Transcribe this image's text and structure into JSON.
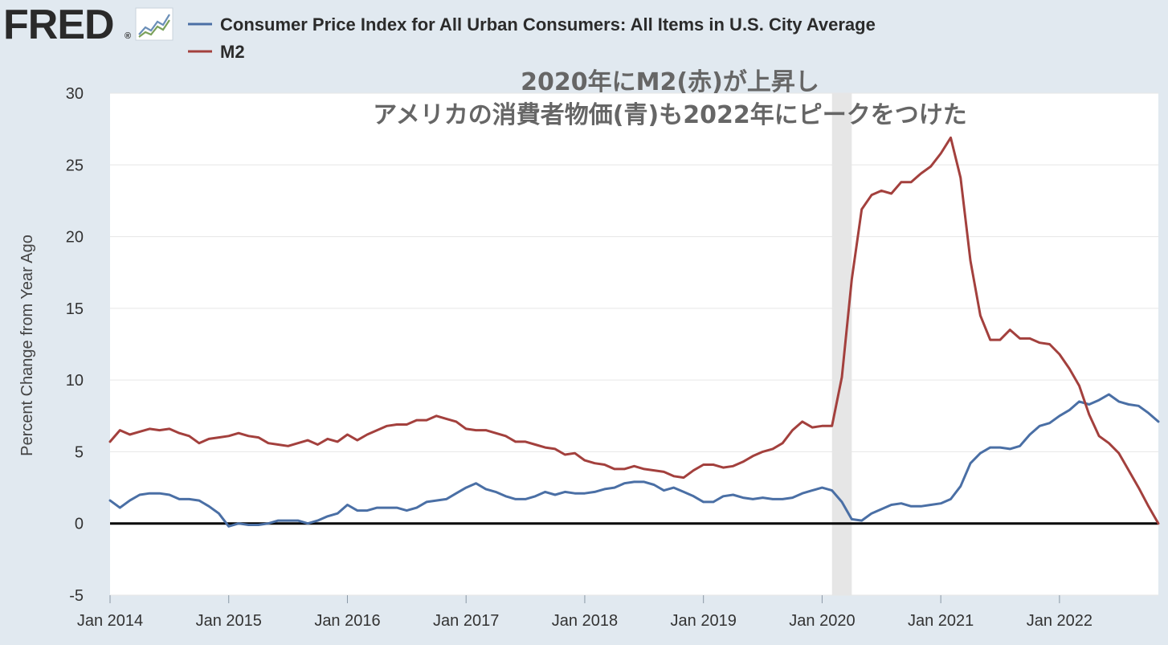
{
  "header": {
    "logo_text": "FRED",
    "logo_mark": "®",
    "logo_icon": "line-chart-icon"
  },
  "colors": {
    "cpi": "#4a6fa5",
    "m2": "#a3403d",
    "background": "#e1e9f0",
    "plot_bg": "#ffffff",
    "grid": "#e6e6e6",
    "recession": "#e6e6e6",
    "zero_line": "#000000"
  },
  "chart_data": {
    "type": "line",
    "title": "",
    "ylabel": "Percent Change from Year Ago",
    "xlabel": "",
    "ylim": [
      -5,
      30
    ],
    "yticks": [
      -5,
      0,
      5,
      10,
      15,
      20,
      25,
      30
    ],
    "xlim": [
      "2014-01",
      "2022-11"
    ],
    "xtick_labels": [
      "Jan 2014",
      "Jan 2015",
      "Jan 2016",
      "Jan 2017",
      "Jan 2018",
      "Jan 2019",
      "Jan 2020",
      "Jan 2021",
      "Jan 2022"
    ],
    "grid": true,
    "legend_position": "top-left",
    "recession": {
      "start": "2020-02",
      "end": "2020-04"
    },
    "annotation": [
      "2020年にM2(赤)が上昇し",
      "アメリカの消費者物価(青)も2022年にピークをつけた"
    ],
    "x": [
      "2014-01",
      "2014-02",
      "2014-03",
      "2014-04",
      "2014-05",
      "2014-06",
      "2014-07",
      "2014-08",
      "2014-09",
      "2014-10",
      "2014-11",
      "2014-12",
      "2015-01",
      "2015-02",
      "2015-03",
      "2015-04",
      "2015-05",
      "2015-06",
      "2015-07",
      "2015-08",
      "2015-09",
      "2015-10",
      "2015-11",
      "2015-12",
      "2016-01",
      "2016-02",
      "2016-03",
      "2016-04",
      "2016-05",
      "2016-06",
      "2016-07",
      "2016-08",
      "2016-09",
      "2016-10",
      "2016-11",
      "2016-12",
      "2017-01",
      "2017-02",
      "2017-03",
      "2017-04",
      "2017-05",
      "2017-06",
      "2017-07",
      "2017-08",
      "2017-09",
      "2017-10",
      "2017-11",
      "2017-12",
      "2018-01",
      "2018-02",
      "2018-03",
      "2018-04",
      "2018-05",
      "2018-06",
      "2018-07",
      "2018-08",
      "2018-09",
      "2018-10",
      "2018-11",
      "2018-12",
      "2019-01",
      "2019-02",
      "2019-03",
      "2019-04",
      "2019-05",
      "2019-06",
      "2019-07",
      "2019-08",
      "2019-09",
      "2019-10",
      "2019-11",
      "2019-12",
      "2020-01",
      "2020-02",
      "2020-03",
      "2020-04",
      "2020-05",
      "2020-06",
      "2020-07",
      "2020-08",
      "2020-09",
      "2020-10",
      "2020-11",
      "2020-12",
      "2021-01",
      "2021-02",
      "2021-03",
      "2021-04",
      "2021-05",
      "2021-06",
      "2021-07",
      "2021-08",
      "2021-09",
      "2021-10",
      "2021-11",
      "2021-12",
      "2022-01",
      "2022-02",
      "2022-03",
      "2022-04",
      "2022-05",
      "2022-06",
      "2022-07",
      "2022-08",
      "2022-09",
      "2022-10",
      "2022-11"
    ],
    "series": [
      {
        "name": "Consumer Price Index for All Urban Consumers: All Items in U.S. City Average",
        "values": [
          1.6,
          1.1,
          1.6,
          2.0,
          2.1,
          2.1,
          2.0,
          1.7,
          1.7,
          1.6,
          1.2,
          0.7,
          -0.2,
          0.0,
          -0.1,
          -0.1,
          0.0,
          0.2,
          0.2,
          0.2,
          0.0,
          0.2,
          0.5,
          0.7,
          1.3,
          0.9,
          0.9,
          1.1,
          1.1,
          1.1,
          0.9,
          1.1,
          1.5,
          1.6,
          1.7,
          2.1,
          2.5,
          2.8,
          2.4,
          2.2,
          1.9,
          1.7,
          1.7,
          1.9,
          2.2,
          2.0,
          2.2,
          2.1,
          2.1,
          2.2,
          2.4,
          2.5,
          2.8,
          2.9,
          2.9,
          2.7,
          2.3,
          2.5,
          2.2,
          1.9,
          1.5,
          1.5,
          1.9,
          2.0,
          1.8,
          1.7,
          1.8,
          1.7,
          1.7,
          1.8,
          2.1,
          2.3,
          2.5,
          2.3,
          1.5,
          0.3,
          0.2,
          0.7,
          1.0,
          1.3,
          1.4,
          1.2,
          1.2,
          1.3,
          1.4,
          1.7,
          2.6,
          4.2,
          4.9,
          5.3,
          5.3,
          5.2,
          5.4,
          6.2,
          6.8,
          7.0,
          7.5,
          7.9,
          8.5,
          8.3,
          8.6,
          9.0,
          8.5,
          8.3,
          8.2,
          7.7,
          7.1
        ]
      },
      {
        "name": "M2",
        "values": [
          5.7,
          6.5,
          6.2,
          6.4,
          6.6,
          6.5,
          6.6,
          6.3,
          6.1,
          5.6,
          5.9,
          6.0,
          6.1,
          6.3,
          6.1,
          6.0,
          5.6,
          5.5,
          5.4,
          5.6,
          5.8,
          5.5,
          5.9,
          5.7,
          6.2,
          5.8,
          6.2,
          6.5,
          6.8,
          6.9,
          6.9,
          7.2,
          7.2,
          7.5,
          7.3,
          7.1,
          6.6,
          6.5,
          6.5,
          6.3,
          6.1,
          5.7,
          5.7,
          5.5,
          5.3,
          5.2,
          4.8,
          4.9,
          4.4,
          4.2,
          4.1,
          3.8,
          3.8,
          4.0,
          3.8,
          3.7,
          3.6,
          3.3,
          3.2,
          3.7,
          4.1,
          4.1,
          3.9,
          4.0,
          4.3,
          4.7,
          5.0,
          5.2,
          5.6,
          6.5,
          7.1,
          6.7,
          6.8,
          6.8,
          10.2,
          17.0,
          21.9,
          22.9,
          23.2,
          23.0,
          23.8,
          23.8,
          24.4,
          24.9,
          25.8,
          26.9,
          24.1,
          18.3,
          14.5,
          12.8,
          12.8,
          13.5,
          12.9,
          12.9,
          12.6,
          12.5,
          11.8,
          10.8,
          9.6,
          7.6,
          6.1,
          5.6,
          4.9,
          3.7,
          2.5,
          1.2,
          0.0
        ]
      }
    ]
  }
}
